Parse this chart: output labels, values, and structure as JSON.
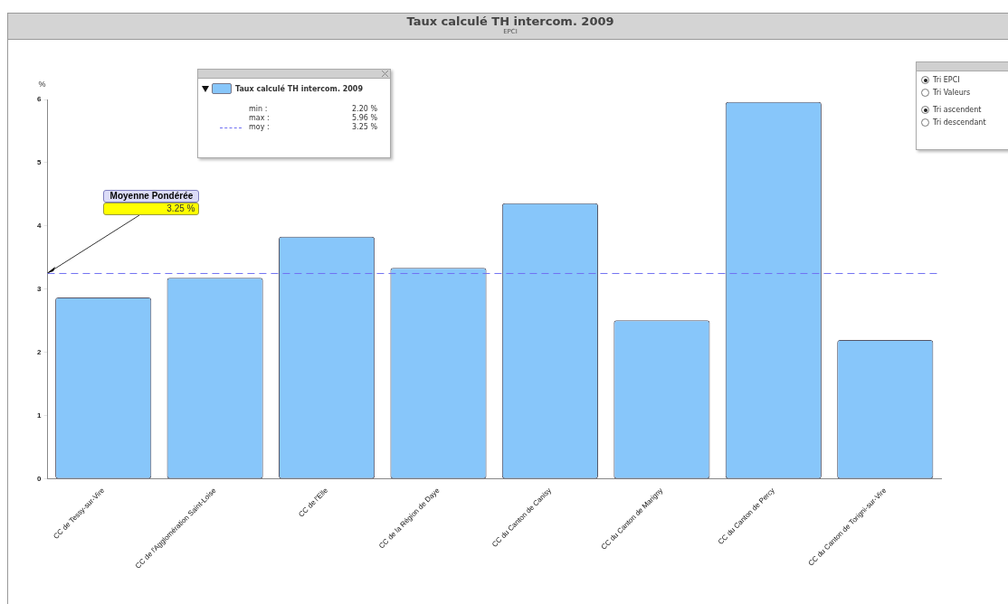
{
  "chart_data": {
    "type": "bar",
    "title": "Taux calculé TH intercom. 2009",
    "subtitle": "EPCI",
    "ylabel": "%",
    "categories": [
      "CC de Tessy-sur-Vire",
      "CC de l'Agglomération Saint-Loise",
      "CC de l'Elle",
      "CC de la Région de Daye",
      "CC du Canton de Canisy",
      "CC du Canton de Marigny",
      "CC du Canton de Percy",
      "CC du Canton de Torigni-sur-Vire"
    ],
    "series": [
      {
        "name": "Taux calculé TH intercom. 2009",
        "color": "#87c6fa",
        "values": [
          2.87,
          3.18,
          3.83,
          3.34,
          4.36,
          2.51,
          5.96,
          2.2
        ]
      }
    ],
    "ylim": [
      0,
      6
    ],
    "yticks": [
      0,
      1,
      2,
      3,
      4,
      5,
      6
    ],
    "grid": false,
    "legend": "top left",
    "ref_lines": [
      {
        "axis": "y",
        "value": 3.25,
        "color": "#6f6ff2",
        "line_style": "dashed"
      }
    ],
    "annotations": [
      "Moyenne Pondérée",
      "3.25 %",
      "min :",
      "2.20 %",
      "max :",
      "5.96 %",
      "moy :",
      "3.25 %",
      "Tri EPCI",
      "Tri Valeurs",
      "Tri ascendent",
      "Tri descendant"
    ]
  }
}
